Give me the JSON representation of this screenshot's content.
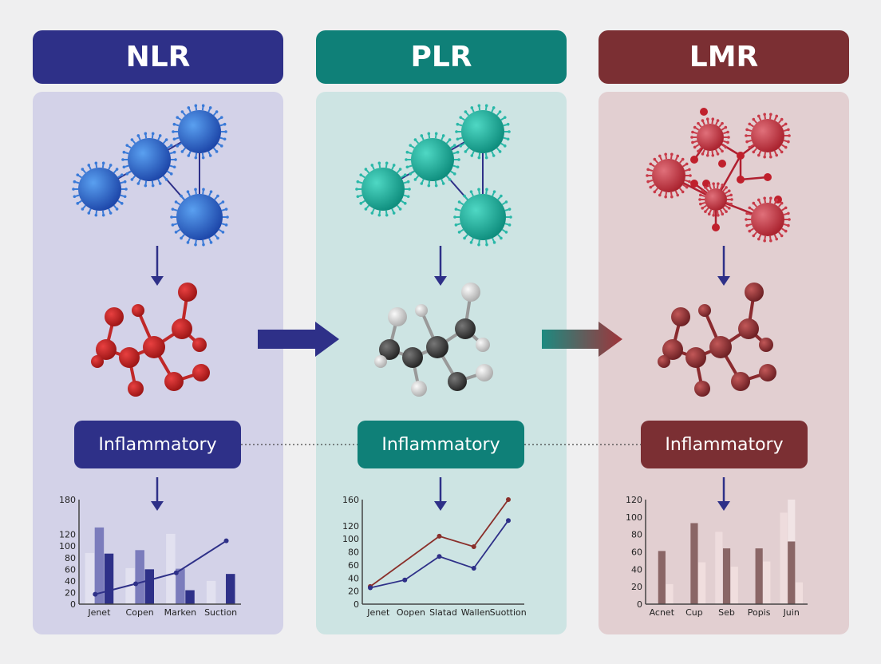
{
  "colors": {
    "nlr": "#2e3088",
    "plr": "#0f8078",
    "lmr": "#7b2f33",
    "nlr_panel": "#d3d2e8",
    "plr_panel": "#cde4e3",
    "lmr_panel": "#e2cfd1",
    "background": "#efeff0"
  },
  "columns": [
    {
      "title": "NLR",
      "label": "Inflammatory"
    },
    {
      "title": "PLR",
      "label": "Inflammatory"
    },
    {
      "title": "LMR",
      "label": "Inflammatory"
    }
  ],
  "icons": [
    "virus-icon",
    "molecule-icon",
    "arrow-down-icon",
    "arrow-right-icon"
  ],
  "chart_data": [
    {
      "type": "bar",
      "categories": [
        "Jenet",
        "Copen",
        "Marken",
        "Suction"
      ],
      "ylim": [
        0,
        180
      ],
      "yticks": [
        0,
        20,
        40,
        60,
        80,
        100,
        120,
        180
      ],
      "series": [
        {
          "values": [
            88,
            62,
            121,
            40
          ]
        },
        {
          "values": [
            132,
            93,
            61,
            null
          ]
        },
        {
          "values": [
            87,
            60,
            24,
            52
          ]
        }
      ],
      "line": [
        17,
        35,
        54,
        109
      ]
    },
    {
      "type": "line",
      "categories": [
        "Jenet",
        "Oopen",
        "Slatad",
        "Wallen",
        "Suottion"
      ],
      "ylim": [
        0,
        160
      ],
      "yticks": [
        0,
        20,
        40,
        60,
        80,
        100,
        120,
        160
      ],
      "series": [
        {
          "color": "#8a2f2a",
          "values": [
            27,
            null,
            104,
            88,
            160
          ]
        },
        {
          "color": "#2e3088",
          "values": [
            25,
            37,
            73,
            55,
            128
          ]
        }
      ]
    },
    {
      "type": "bar",
      "categories": [
        "Acnet",
        "Cup",
        "Seb",
        "Popis",
        "Juin"
      ],
      "ylim": [
        0,
        120
      ],
      "yticks": [
        0,
        20,
        40,
        60,
        80,
        100,
        120
      ],
      "series": [
        {
          "values": [
            null,
            null,
            83,
            null,
            105
          ]
        },
        {
          "values": [
            61,
            93,
            64,
            64,
            72
          ]
        },
        {
          "values": [
            23,
            48,
            43,
            49,
            25
          ]
        }
      ],
      "extra": [
        null,
        null,
        null,
        null,
        120
      ]
    }
  ]
}
